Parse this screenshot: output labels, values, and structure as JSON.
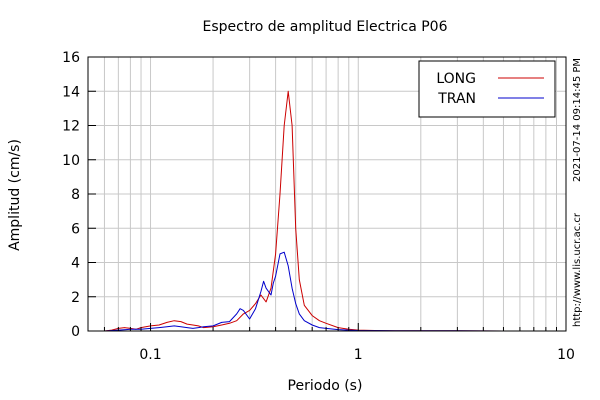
{
  "chart_data": {
    "type": "line",
    "title": "Espectro de amplitud Electrica P06",
    "xlabel": "Periodo (s)",
    "ylabel": "Amplitud (cm/s)",
    "xscale": "log",
    "xlim": [
      0.05,
      10
    ],
    "ylim": [
      0,
      16
    ],
    "xticks": [
      {
        "value": 0.1,
        "label": "0.1"
      },
      {
        "value": 1,
        "label": "1"
      },
      {
        "value": 10,
        "label": "10"
      }
    ],
    "yticks": [
      0,
      2,
      4,
      6,
      8,
      10,
      12,
      14,
      16
    ],
    "grid": true,
    "legend_position": "top-right",
    "series": [
      {
        "name": "LONG",
        "color": "#cc0000",
        "points": [
          [
            0.06,
            0.0
          ],
          [
            0.065,
            0.05
          ],
          [
            0.07,
            0.15
          ],
          [
            0.075,
            0.2
          ],
          [
            0.08,
            0.15
          ],
          [
            0.085,
            0.1
          ],
          [
            0.09,
            0.2
          ],
          [
            0.1,
            0.3
          ],
          [
            0.11,
            0.35
          ],
          [
            0.12,
            0.5
          ],
          [
            0.13,
            0.6
          ],
          [
            0.14,
            0.55
          ],
          [
            0.15,
            0.4
          ],
          [
            0.16,
            0.35
          ],
          [
            0.17,
            0.3
          ],
          [
            0.18,
            0.2
          ],
          [
            0.2,
            0.25
          ],
          [
            0.22,
            0.35
          ],
          [
            0.24,
            0.45
          ],
          [
            0.26,
            0.6
          ],
          [
            0.28,
            1.0
          ],
          [
            0.3,
            1.2
          ],
          [
            0.32,
            1.6
          ],
          [
            0.34,
            2.1
          ],
          [
            0.36,
            1.7
          ],
          [
            0.38,
            2.5
          ],
          [
            0.4,
            4.5
          ],
          [
            0.42,
            8.0
          ],
          [
            0.44,
            12.0
          ],
          [
            0.46,
            14.0
          ],
          [
            0.48,
            12.0
          ],
          [
            0.5,
            6.0
          ],
          [
            0.52,
            3.0
          ],
          [
            0.55,
            1.5
          ],
          [
            0.6,
            0.9
          ],
          [
            0.65,
            0.6
          ],
          [
            0.7,
            0.45
          ],
          [
            0.8,
            0.2
          ],
          [
            0.9,
            0.1
          ],
          [
            1.0,
            0.05
          ],
          [
            1.2,
            0.03
          ],
          [
            1.5,
            0.02
          ],
          [
            2.0,
            0.01
          ],
          [
            3.0,
            0.01
          ],
          [
            5.0,
            0.0
          ],
          [
            10.0,
            0.0
          ]
        ]
      },
      {
        "name": "TRAN",
        "color": "#0000cc",
        "points": [
          [
            0.06,
            0.0
          ],
          [
            0.07,
            0.05
          ],
          [
            0.08,
            0.1
          ],
          [
            0.09,
            0.1
          ],
          [
            0.1,
            0.15
          ],
          [
            0.11,
            0.2
          ],
          [
            0.12,
            0.25
          ],
          [
            0.13,
            0.3
          ],
          [
            0.14,
            0.25
          ],
          [
            0.15,
            0.2
          ],
          [
            0.16,
            0.15
          ],
          [
            0.17,
            0.2
          ],
          [
            0.18,
            0.25
          ],
          [
            0.2,
            0.3
          ],
          [
            0.22,
            0.5
          ],
          [
            0.24,
            0.55
          ],
          [
            0.26,
            1.0
          ],
          [
            0.27,
            1.3
          ],
          [
            0.28,
            1.2
          ],
          [
            0.3,
            0.7
          ],
          [
            0.32,
            1.3
          ],
          [
            0.34,
            2.3
          ],
          [
            0.35,
            2.9
          ],
          [
            0.36,
            2.5
          ],
          [
            0.38,
            2.1
          ],
          [
            0.39,
            2.8
          ],
          [
            0.4,
            3.2
          ],
          [
            0.42,
            4.5
          ],
          [
            0.44,
            4.6
          ],
          [
            0.46,
            3.8
          ],
          [
            0.48,
            2.5
          ],
          [
            0.5,
            1.6
          ],
          [
            0.52,
            1.0
          ],
          [
            0.55,
            0.6
          ],
          [
            0.6,
            0.35
          ],
          [
            0.65,
            0.2
          ],
          [
            0.7,
            0.15
          ],
          [
            0.8,
            0.08
          ],
          [
            0.9,
            0.05
          ],
          [
            1.0,
            0.03
          ],
          [
            1.5,
            0.02
          ],
          [
            2.0,
            0.01
          ],
          [
            3.0,
            0.01
          ],
          [
            5.0,
            0.0
          ],
          [
            10.0,
            0.0
          ]
        ]
      }
    ],
    "side_labels": [
      "2021-07-14 09:14:45 PM",
      "http://www.lis.ucr.ac.cr"
    ]
  }
}
